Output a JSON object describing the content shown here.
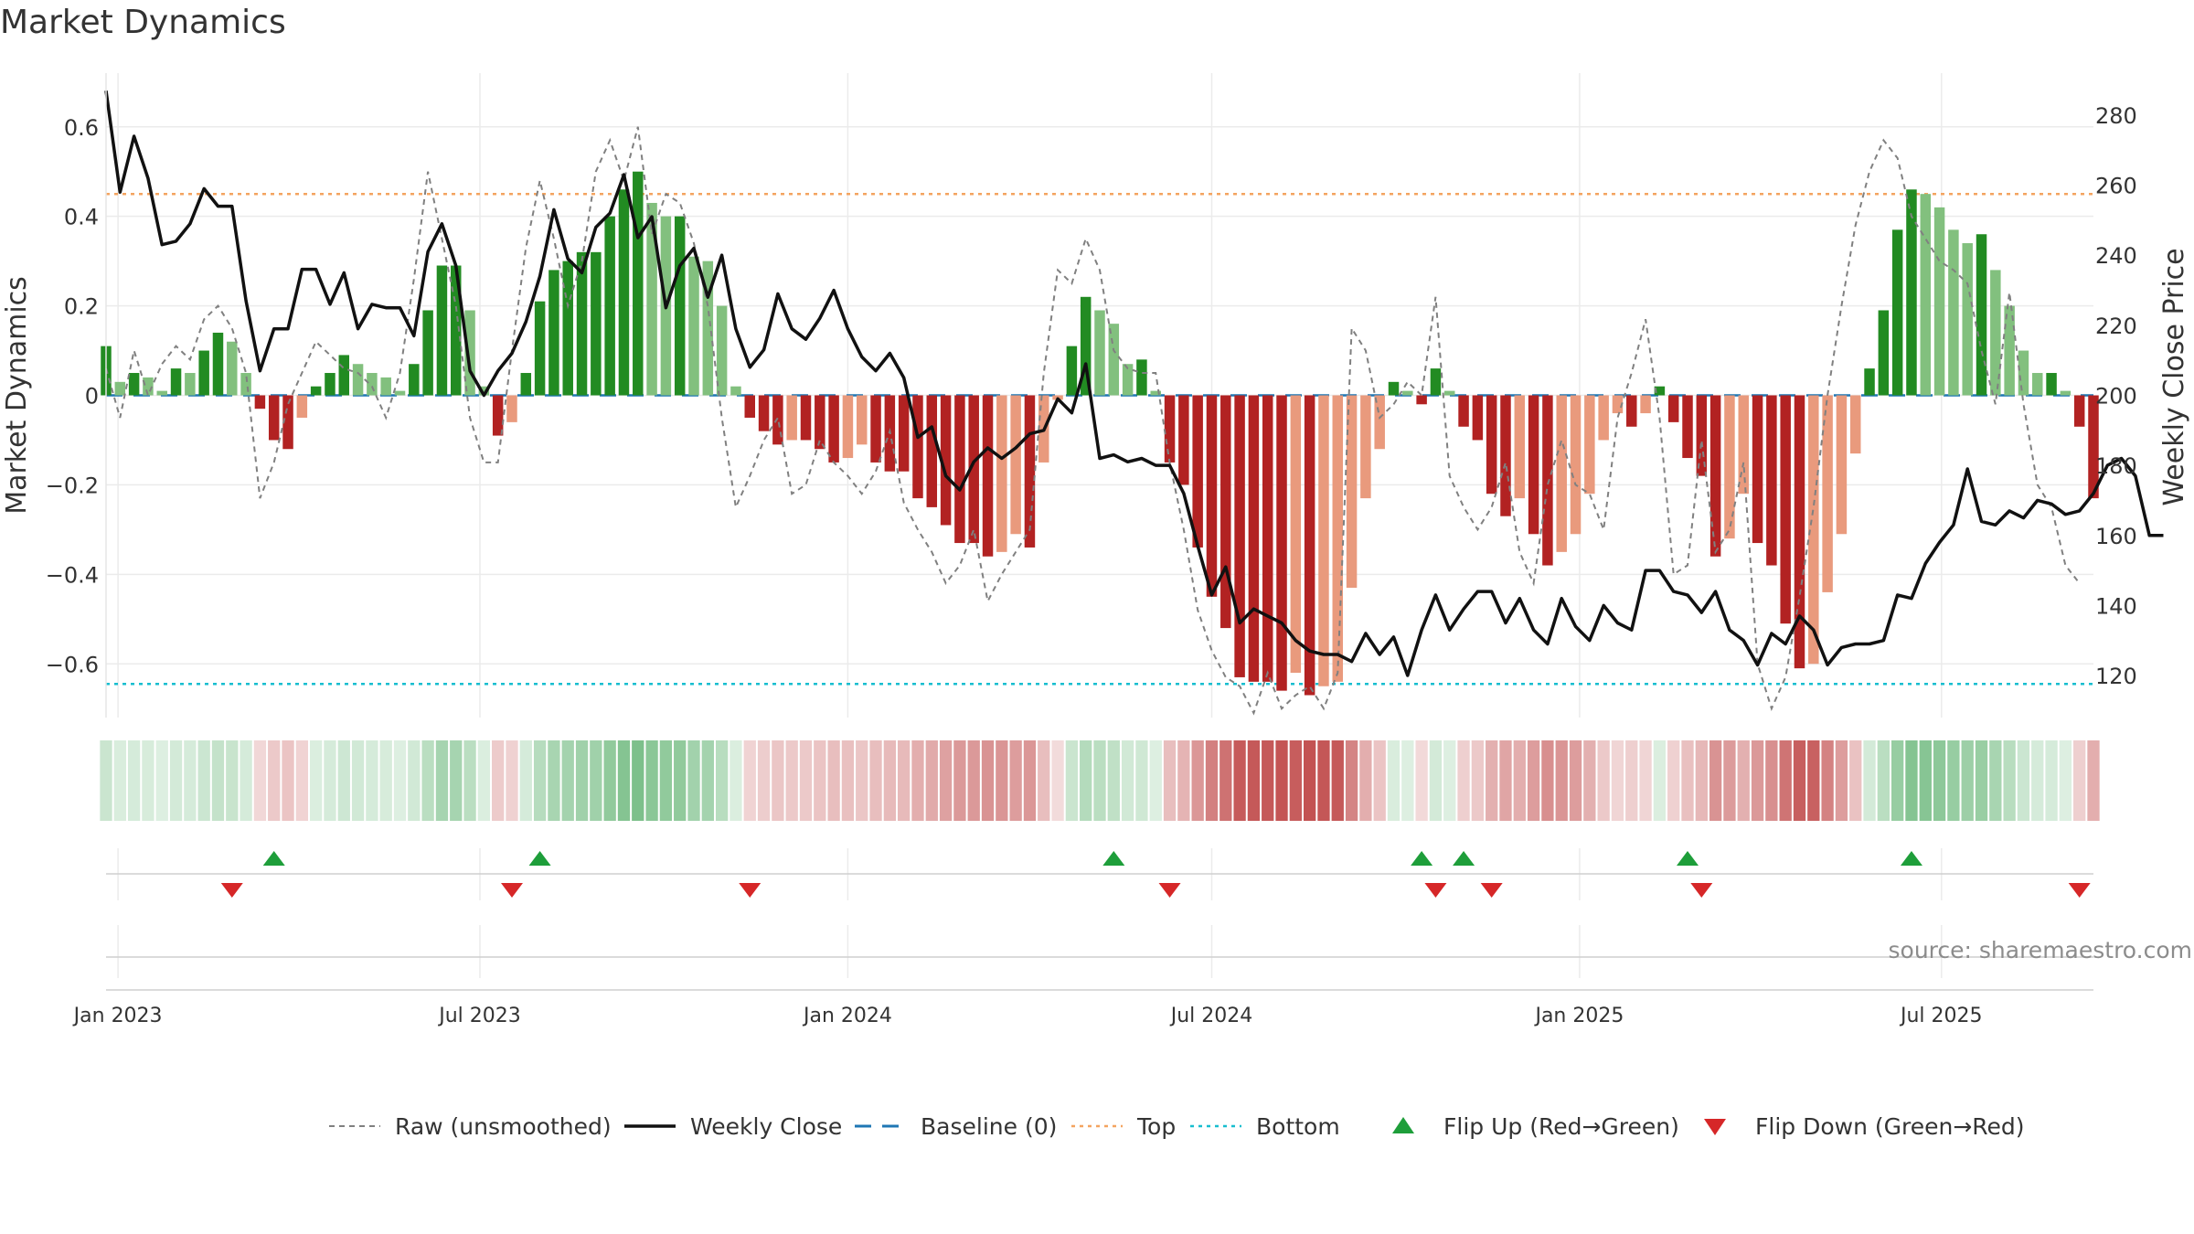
{
  "title": "Market Dynamics",
  "source_note": "source: sharemaestro.com",
  "chart_data": {
    "type": "bar",
    "title": "Market Dynamics",
    "ylabel_left": "Market Dynamics",
    "ylabel_right": "Weekly Close Price",
    "ylim_left": [
      -0.72,
      0.72
    ],
    "ylim_right": [
      108,
      292
    ],
    "yticks_left": [
      0.6,
      0.4,
      0.2,
      0,
      -0.2,
      -0.4,
      -0.6
    ],
    "yticks_left_labels": [
      "0.6",
      "0.4",
      "0.2",
      "0",
      "−0.2",
      "−0.4",
      "−0.6"
    ],
    "yticks_right": [
      280,
      260,
      240,
      220,
      200,
      180,
      160,
      140,
      120
    ],
    "x_start": "2022-12-26",
    "x_end": "2025-09-15",
    "xticks": [
      {
        "date": "2023-01-01",
        "label": "Jan 2023"
      },
      {
        "date": "2023-07-01",
        "label": "Jul 2023"
      },
      {
        "date": "2024-01-01",
        "label": "Jan 2024"
      },
      {
        "date": "2024-07-01",
        "label": "Jul 2024"
      },
      {
        "date": "2025-01-01",
        "label": "Jan 2025"
      },
      {
        "date": "2025-07-01",
        "label": "Jul 2025"
      }
    ],
    "top_line": 0.45,
    "bottom_line": -0.645,
    "baseline": 0,
    "week_start": "2022-12-26",
    "bars": [
      0.11,
      0.03,
      0.05,
      0.04,
      0.01,
      0.06,
      0.05,
      0.1,
      0.14,
      0.12,
      0.05,
      -0.03,
      -0.1,
      -0.12,
      -0.05,
      0.02,
      0.05,
      0.09,
      0.07,
      0.05,
      0.04,
      0.01,
      0.07,
      0.19,
      0.29,
      0.29,
      0.19,
      0.02,
      -0.09,
      -0.06,
      0.05,
      0.21,
      0.28,
      0.3,
      0.32,
      0.32,
      0.4,
      0.46,
      0.5,
      0.43,
      0.4,
      0.4,
      0.31,
      0.3,
      0.2,
      0.02,
      -0.05,
      -0.08,
      -0.11,
      -0.1,
      -0.1,
      -0.12,
      -0.15,
      -0.14,
      -0.11,
      -0.15,
      -0.17,
      -0.17,
      -0.23,
      -0.25,
      -0.29,
      -0.33,
      -0.33,
      -0.36,
      -0.35,
      -0.31,
      -0.34,
      -0.15,
      -0.01,
      0.11,
      0.22,
      0.19,
      0.16,
      0.07,
      0.08,
      0.01,
      -0.15,
      -0.2,
      -0.34,
      -0.45,
      -0.52,
      -0.63,
      -0.64,
      -0.64,
      -0.66,
      -0.62,
      -0.67,
      -0.65,
      -0.64,
      -0.43,
      -0.23,
      -0.12,
      0.03,
      0.01,
      -0.02,
      0.06,
      0.01,
      -0.07,
      -0.1,
      -0.22,
      -0.27,
      -0.23,
      -0.31,
      -0.38,
      -0.35,
      -0.31,
      -0.22,
      -0.1,
      -0.04,
      -0.07,
      -0.04,
      0.02,
      -0.06,
      -0.14,
      -0.18,
      -0.36,
      -0.32,
      -0.22,
      -0.33,
      -0.38,
      -0.51,
      -0.61,
      -0.6,
      -0.44,
      -0.31,
      -0.13,
      0.06,
      0.19,
      0.37,
      0.46,
      0.45,
      0.42,
      0.37,
      0.34,
      0.36,
      0.28,
      0.2,
      0.1,
      0.05,
      0.05,
      0.01,
      -0.07,
      -0.23
    ],
    "series": [
      {
        "name": "Raw (unsmoothed)",
        "unit_axis": "left",
        "values": [
          0.06,
          -0.05,
          0.1,
          0,
          0.07,
          0.11,
          0.08,
          0.17,
          0.2,
          0.15,
          0.05,
          -0.23,
          -0.15,
          -0.02,
          0.05,
          0.12,
          0.09,
          0.06,
          0.05,
          0.02,
          -0.05,
          0.05,
          0.26,
          0.5,
          0.35,
          0.2,
          -0.05,
          -0.15,
          -0.15,
          0.1,
          0.33,
          0.48,
          0.35,
          0.2,
          0.3,
          0.5,
          0.57,
          0.48,
          0.6,
          0.36,
          0.45,
          0.43,
          0.34,
          0.2,
          -0.05,
          -0.25,
          -0.18,
          -0.1,
          -0.05,
          -0.22,
          -0.2,
          -0.1,
          -0.15,
          -0.18,
          -0.22,
          -0.17,
          -0.08,
          -0.24,
          -0.3,
          -0.35,
          -0.42,
          -0.38,
          -0.3,
          -0.46,
          -0.4,
          -0.35,
          -0.3,
          0.05,
          0.28,
          0.25,
          0.35,
          0.28,
          0.1,
          0.06,
          0.05,
          0.05,
          -0.15,
          -0.3,
          -0.48,
          -0.57,
          -0.63,
          -0.65,
          -0.71,
          -0.62,
          -0.7,
          -0.67,
          -0.65,
          -0.7,
          -0.62,
          0.15,
          0.1,
          -0.05,
          -0.02,
          0.03,
          0,
          0.22,
          -0.18,
          -0.25,
          -0.3,
          -0.25,
          -0.15,
          -0.35,
          -0.42,
          -0.2,
          -0.1,
          -0.2,
          -0.22,
          -0.3,
          -0.05,
          0.05,
          0.17,
          -0.05,
          -0.4,
          -0.38,
          -0.1,
          -0.35,
          -0.3,
          -0.15,
          -0.6,
          -0.7,
          -0.63,
          -0.45,
          -0.25,
          0,
          0.2,
          0.38,
          0.5,
          0.57,
          0.53,
          0.4,
          0.35,
          0.3,
          0.28,
          0.25,
          0.1,
          -0.02,
          0.23,
          -0.02,
          -0.2,
          -0.25,
          -0.38,
          -0.42
        ]
      },
      {
        "name": "Weekly Close",
        "unit_axis": "right",
        "values": [
          287,
          258,
          274,
          262,
          243,
          244,
          249,
          259,
          254,
          254,
          227,
          207,
          219,
          219,
          236,
          236,
          226,
          235,
          219,
          226,
          225,
          225,
          217,
          241,
          249,
          237,
          207,
          200,
          207,
          212,
          221,
          234,
          253,
          239,
          235,
          248,
          252,
          263,
          245,
          251,
          225,
          237,
          242,
          228,
          240,
          219,
          208,
          213,
          229,
          219,
          216,
          222,
          230,
          219,
          211,
          207,
          212,
          205,
          188,
          191,
          177,
          173,
          181,
          185,
          182,
          185,
          189,
          190,
          199,
          195,
          209,
          182,
          183,
          181,
          182,
          180,
          180,
          172,
          157,
          143,
          151,
          135,
          139,
          137,
          135,
          130,
          127,
          126,
          126,
          124,
          132,
          126,
          131,
          120,
          133,
          143,
          133,
          139,
          144,
          144,
          135,
          142,
          133,
          129,
          142,
          134,
          130,
          140,
          135,
          133,
          150,
          150,
          144,
          143,
          138,
          144,
          133,
          130,
          123,
          132,
          129,
          137,
          133,
          123,
          128,
          129,
          129,
          130,
          143,
          142,
          152,
          158,
          163,
          179,
          164,
          163,
          167,
          165,
          170,
          169,
          166,
          167,
          172,
          180,
          182,
          177,
          160,
          160
        ]
      }
    ],
    "flip_up_dates": [
      "2023-03-20",
      "2023-07-31",
      "2024-05-13",
      "2024-10-14",
      "2024-11-04",
      "2025-02-24",
      "2025-06-16"
    ],
    "flip_down_dates": [
      "2023-02-27",
      "2023-07-17",
      "2023-11-13",
      "2024-06-10",
      "2024-10-21",
      "2024-11-18",
      "2025-03-03",
      "2025-09-08"
    ],
    "legend_position": "bottom-center",
    "grid": true
  },
  "legend": [
    {
      "label": "Raw (unsmoothed)",
      "kind": "dashed-gray"
    },
    {
      "label": "Weekly Close",
      "kind": "solid-black"
    },
    {
      "label": "Baseline (0)",
      "kind": "dashed-blue"
    },
    {
      "label": "Top",
      "kind": "dotted-orange"
    },
    {
      "label": "Bottom",
      "kind": "dotted-cyan"
    },
    {
      "label": "Flip Up (Red→Green)",
      "kind": "triangle-up"
    },
    {
      "label": "Flip Down (Green→Red)",
      "kind": "triangle-down"
    }
  ],
  "colors": {
    "green_strong": "#228b22",
    "green_light": "#82c07e",
    "red_strong": "#b22222",
    "red_light": "#e99a7d",
    "raw": "#808080",
    "close": "#111111",
    "baseline": "#1f77b4",
    "top": "#f4a460",
    "bottom": "#17becf",
    "flip_up": "#1e9e3a",
    "flip_down": "#d62728",
    "grid": "#ebebeb",
    "source": "#8c8c8c"
  }
}
